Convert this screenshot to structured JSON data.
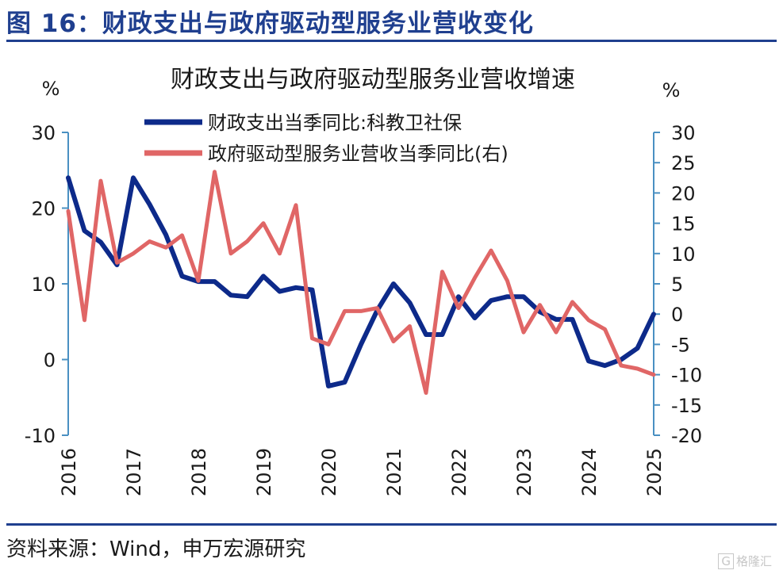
{
  "figure_title": "图 16：财政支出与政府驱动型服务业营收变化",
  "source": "资料来源：Wind，申万宏源研究",
  "watermark": "格隆汇",
  "chart_data": {
    "type": "line",
    "title": "财政支出与政府驱动型服务业营收增速",
    "left_unit": "%",
    "right_unit": "%",
    "y_left": {
      "min": -10,
      "max": 30,
      "ticks": [
        -10,
        0,
        10,
        20,
        30
      ]
    },
    "y_right": {
      "min": -20,
      "max": 30,
      "ticks": [
        -20,
        -15,
        -10,
        -5,
        0,
        5,
        10,
        15,
        20,
        25,
        30
      ]
    },
    "x_ticks": [
      "2016",
      "2017",
      "2018",
      "2019",
      "2020",
      "2021",
      "2022",
      "2023",
      "2024",
      "2025"
    ],
    "x_range": [
      2016.0,
      2025.0
    ],
    "grid": false,
    "legend_position": "top",
    "series": [
      {
        "name": "财政支出当季同比:科教卫社保",
        "axis": "left",
        "color": "#0d2a8a",
        "points": [
          [
            2016.0,
            24
          ],
          [
            2016.25,
            17
          ],
          [
            2016.5,
            15.5
          ],
          [
            2016.75,
            12.5
          ],
          [
            2017.0,
            24
          ],
          [
            2017.25,
            20.5
          ],
          [
            2017.5,
            16.5
          ],
          [
            2017.75,
            11
          ],
          [
            2018.0,
            10.3
          ],
          [
            2018.25,
            10.3
          ],
          [
            2018.5,
            8.5
          ],
          [
            2018.75,
            8.3
          ],
          [
            2019.0,
            11
          ],
          [
            2019.25,
            9
          ],
          [
            2019.5,
            9.5
          ],
          [
            2019.75,
            9.2
          ],
          [
            2020.0,
            -3.5
          ],
          [
            2020.25,
            -3
          ],
          [
            2020.5,
            2
          ],
          [
            2020.75,
            6.5
          ],
          [
            2021.0,
            10
          ],
          [
            2021.25,
            7.5
          ],
          [
            2021.5,
            3.3
          ],
          [
            2021.75,
            3.3
          ],
          [
            2022.0,
            8.3
          ],
          [
            2022.25,
            5.5
          ],
          [
            2022.5,
            7.8
          ],
          [
            2022.75,
            8.3
          ],
          [
            2023.0,
            8.3
          ],
          [
            2023.25,
            6.3
          ],
          [
            2023.5,
            5.3
          ],
          [
            2023.75,
            5.3
          ],
          [
            2024.0,
            -0.2
          ],
          [
            2024.25,
            -0.8
          ],
          [
            2024.5,
            0
          ],
          [
            2024.75,
            1.5
          ],
          [
            2025.0,
            6
          ]
        ]
      },
      {
        "name": "政府驱动型服务业营收当季同比(右)",
        "axis": "right",
        "color": "#e06666",
        "points": [
          [
            2016.0,
            17
          ],
          [
            2016.25,
            -1
          ],
          [
            2016.5,
            22
          ],
          [
            2016.75,
            8.5
          ],
          [
            2017.0,
            10
          ],
          [
            2017.25,
            12
          ],
          [
            2017.5,
            11
          ],
          [
            2017.75,
            13
          ],
          [
            2018.0,
            5.5
          ],
          [
            2018.25,
            23.5
          ],
          [
            2018.5,
            10
          ],
          [
            2018.75,
            12
          ],
          [
            2019.0,
            15
          ],
          [
            2019.25,
            10
          ],
          [
            2019.5,
            18
          ],
          [
            2019.75,
            -4
          ],
          [
            2020.0,
            -5
          ],
          [
            2020.25,
            0.5
          ],
          [
            2020.5,
            0.5
          ],
          [
            2020.75,
            1
          ],
          [
            2021.0,
            -4.5
          ],
          [
            2021.25,
            -2
          ],
          [
            2021.5,
            -13
          ],
          [
            2021.75,
            7
          ],
          [
            2022.0,
            1
          ],
          [
            2022.25,
            6
          ],
          [
            2022.5,
            10.5
          ],
          [
            2022.75,
            5.5
          ],
          [
            2023.0,
            -3
          ],
          [
            2023.25,
            1.5
          ],
          [
            2023.5,
            -3
          ],
          [
            2023.75,
            2
          ],
          [
            2024.0,
            -1
          ],
          [
            2024.25,
            -2.5
          ],
          [
            2024.5,
            -8.5
          ],
          [
            2024.75,
            -9
          ],
          [
            2025.0,
            -10
          ]
        ]
      }
    ]
  }
}
